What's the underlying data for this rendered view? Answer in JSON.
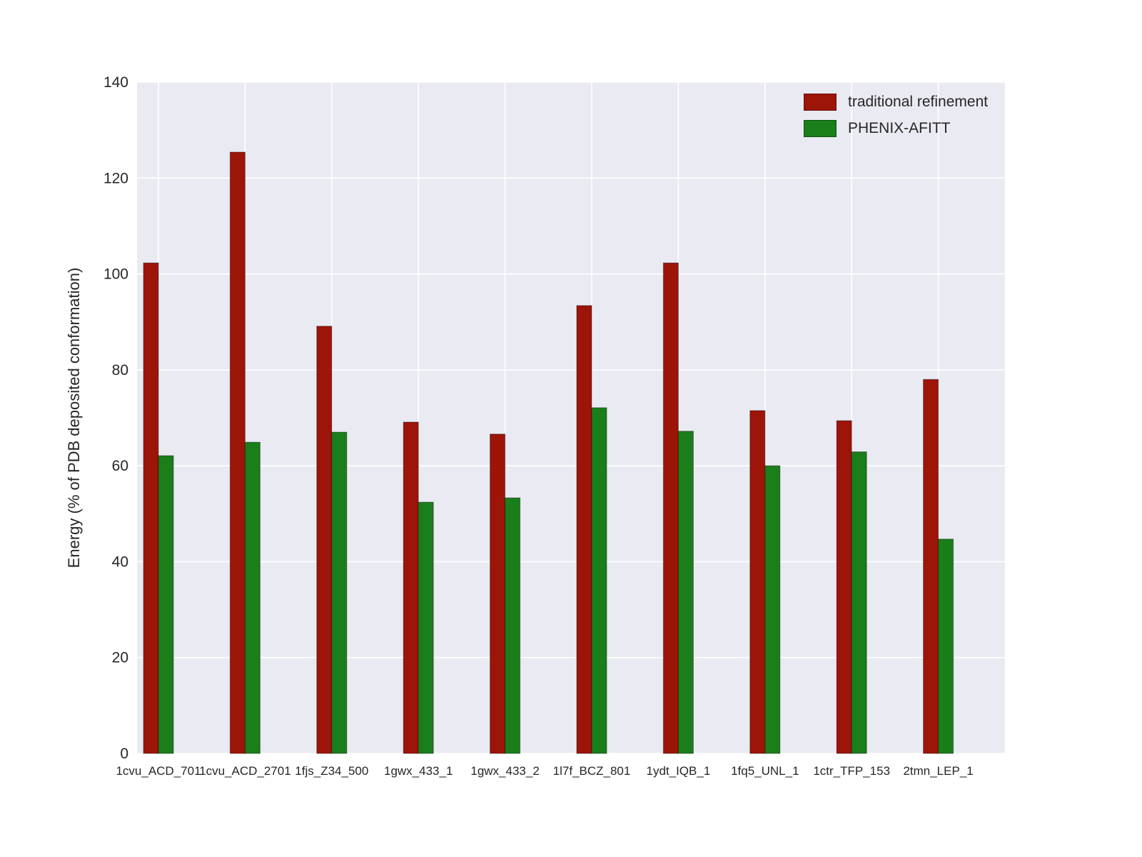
{
  "chart_data": {
    "type": "bar",
    "title": "",
    "xlabel": "",
    "ylabel": "Energy (% of PDB deposited conformation)",
    "ylim": [
      0,
      140
    ],
    "yticks": [
      0,
      20,
      40,
      60,
      80,
      100,
      120,
      140
    ],
    "grid": true,
    "legend_position": "upper right",
    "categories": [
      "1cvu_ACD_701",
      "1cvu_ACD_2701",
      "1fjs_Z34_500",
      "1gwx_433_1",
      "1gwx_433_2",
      "1l7f_BCZ_801",
      "1ydt_IQB_1",
      "1fq5_UNL_1",
      "1ctr_TFP_153",
      "2tmn_LEP_1"
    ],
    "series": [
      {
        "name": "traditional refinement",
        "color": "#9d1409",
        "values": [
          102.3,
          125.4,
          89.1,
          69.1,
          66.6,
          93.4,
          102.3,
          71.5,
          69.4,
          78.0
        ]
      },
      {
        "name": "PHENIX-AFITT",
        "color": "#1a7e1a",
        "values": [
          62.1,
          64.9,
          67.0,
          52.4,
          53.3,
          72.1,
          67.2,
          60.0,
          62.9,
          44.7
        ]
      }
    ],
    "colors": {
      "plot_bg": "#eaeaf2",
      "grid": "#ffffff",
      "text": "#262626"
    }
  }
}
